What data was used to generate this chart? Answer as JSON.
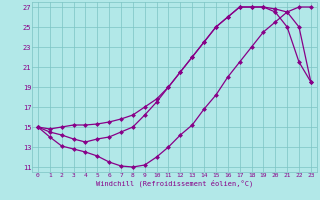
{
  "xlabel": "Windchill (Refroidissement éolien,°C)",
  "xlim": [
    -0.5,
    23.5
  ],
  "ylim": [
    10.5,
    27.5
  ],
  "yticks": [
    11,
    13,
    15,
    17,
    19,
    21,
    23,
    25,
    27
  ],
  "xticks": [
    0,
    1,
    2,
    3,
    4,
    5,
    6,
    7,
    8,
    9,
    10,
    11,
    12,
    13,
    14,
    15,
    16,
    17,
    18,
    19,
    20,
    21,
    22,
    23
  ],
  "bg_color": "#b2e8e8",
  "grid_color": "#7cc4c4",
  "line_color": "#880088",
  "line1_x": [
    0,
    1,
    2,
    3,
    4,
    5,
    6,
    7,
    8,
    9,
    10,
    11,
    12,
    13,
    14,
    15,
    16,
    17,
    18,
    19,
    20,
    21,
    22,
    23
  ],
  "line1_y": [
    15,
    14.0,
    13.1,
    12.8,
    12.5,
    12.1,
    11.5,
    11.1,
    11.0,
    11.2,
    12.0,
    13.0,
    14.2,
    15.2,
    16.8,
    18.2,
    20.0,
    21.5,
    23.0,
    24.5,
    25.5,
    26.5,
    27.0,
    27.0
  ],
  "line2_x": [
    0,
    1,
    2,
    3,
    4,
    5,
    6,
    7,
    8,
    9,
    10,
    11,
    12,
    13,
    14,
    15,
    16,
    17,
    18,
    19,
    20,
    21,
    22,
    23
  ],
  "line2_y": [
    15,
    14.8,
    15.0,
    15.2,
    15.2,
    15.3,
    15.5,
    15.8,
    16.2,
    17.0,
    17.8,
    19.0,
    20.5,
    22.0,
    23.5,
    25.0,
    26.0,
    27.0,
    27.0,
    27.0,
    26.5,
    25.0,
    21.5,
    19.5
  ],
  "line3_x": [
    0,
    1,
    2,
    3,
    4,
    5,
    6,
    7,
    8,
    9,
    10,
    11,
    12,
    13,
    14,
    15,
    16,
    17,
    18,
    19,
    20,
    21,
    22,
    23
  ],
  "line3_y": [
    15,
    14.5,
    14.2,
    13.8,
    13.5,
    13.8,
    14.0,
    14.5,
    15.0,
    16.2,
    17.5,
    19.0,
    20.5,
    22.0,
    23.5,
    25.0,
    26.0,
    27.0,
    27.0,
    27.0,
    26.8,
    26.5,
    25.0,
    19.5
  ]
}
